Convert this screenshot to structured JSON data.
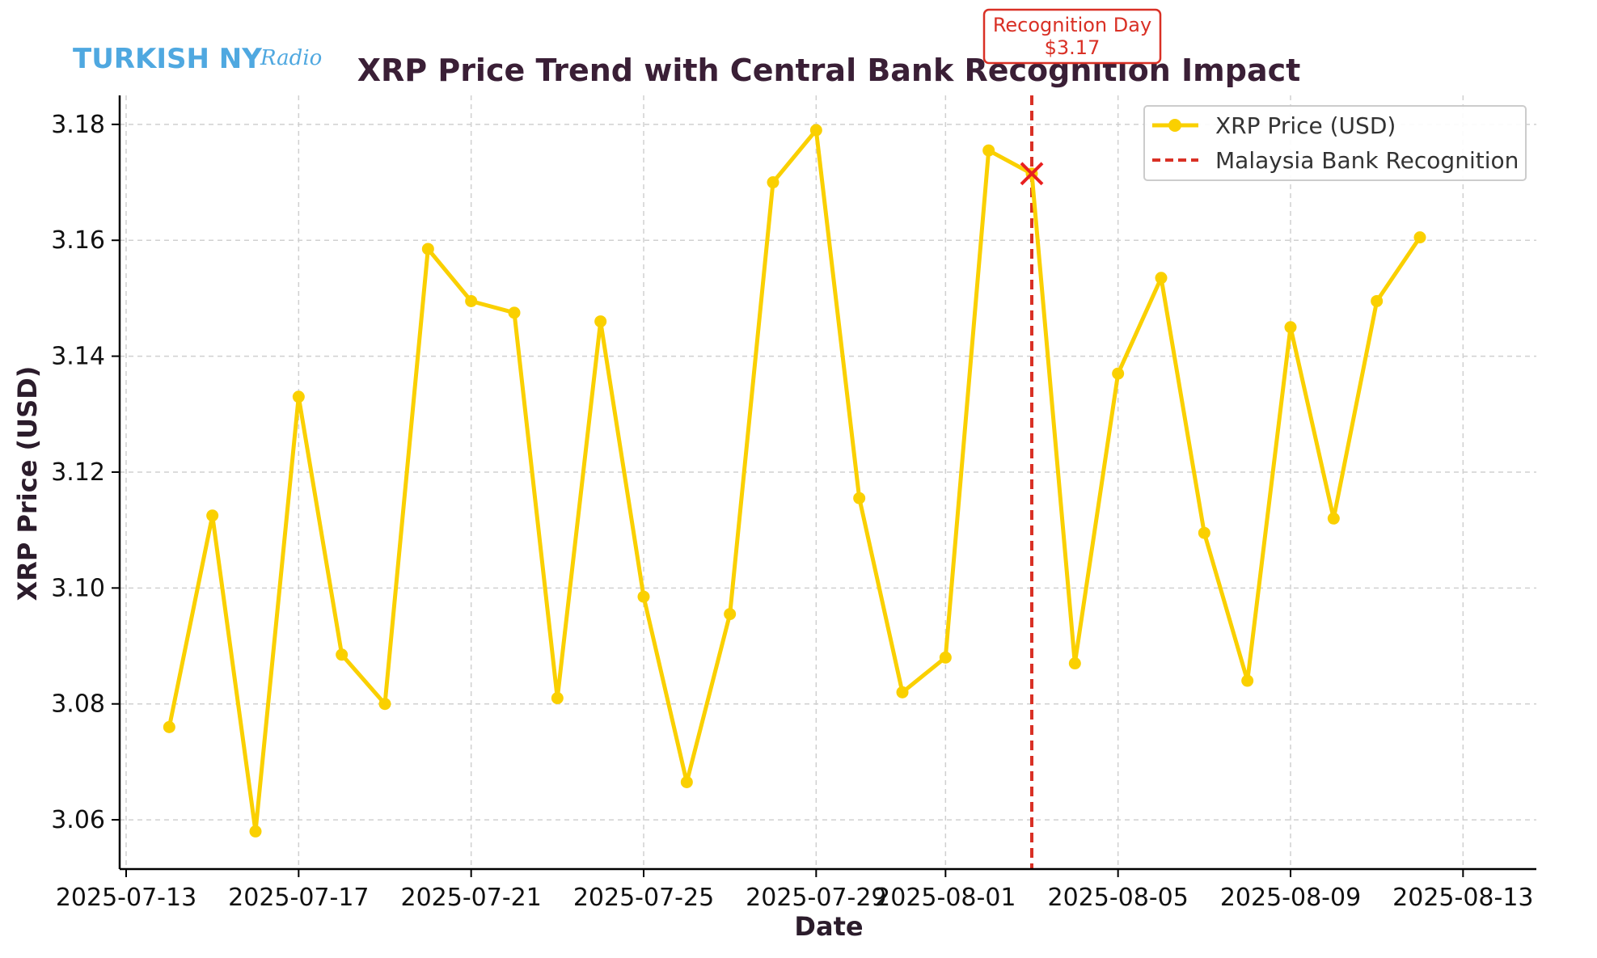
{
  "logo": {
    "main_text": "TURKISH NY",
    "script_text": "Radio",
    "color": "#4FA8E0"
  },
  "chart_data": {
    "type": "line",
    "title": "XRP Price Trend with Central Bank Recognition Impact",
    "xlabel": "Date",
    "ylabel": "XRP Price (USD)",
    "grid": true,
    "legend_position": "top-right",
    "ylim": [
      3.0515,
      3.185
    ],
    "xlim": [
      "2025-07-12.85",
      "2025-08-14.70"
    ],
    "yticks": [
      3.06,
      3.08,
      3.1,
      3.12,
      3.14,
      3.16,
      3.18
    ],
    "ytick_labels": [
      "3.06",
      "3.08",
      "3.10",
      "3.12",
      "3.14",
      "3.16",
      "3.18"
    ],
    "xticks": [
      "2025-07-13",
      "2025-07-17",
      "2025-07-21",
      "2025-07-25",
      "2025-07-29",
      "2025-08-01",
      "2025-08-05",
      "2025-08-09",
      "2025-08-13"
    ],
    "xtick_labels": [
      "2025-07-13",
      "2025-07-17",
      "2025-07-21",
      "2025-07-25",
      "2025-07-29",
      "2025-08-01",
      "2025-08-05",
      "2025-08-09",
      "2025-08-13"
    ],
    "series": [
      {
        "name": "XRP Price (USD)",
        "color": "#FAD000",
        "x": [
          "2025-07-14",
          "2025-07-15",
          "2025-07-16",
          "2025-07-17",
          "2025-07-18",
          "2025-07-19",
          "2025-07-20",
          "2025-07-21",
          "2025-07-22",
          "2025-07-23",
          "2025-07-24",
          "2025-07-25",
          "2025-07-26",
          "2025-07-27",
          "2025-07-28",
          "2025-07-29",
          "2025-07-30",
          "2025-07-31",
          "2025-08-01",
          "2025-08-02",
          "2025-08-03",
          "2025-08-04",
          "2025-08-05",
          "2025-08-06",
          "2025-08-07",
          "2025-08-08",
          "2025-08-09",
          "2025-08-10",
          "2025-08-11",
          "2025-08-12"
        ],
        "values": [
          3.076,
          3.1125,
          3.058,
          3.133,
          3.0885,
          3.08,
          3.1585,
          3.1495,
          3.1475,
          3.081,
          3.146,
          3.0985,
          3.0665,
          3.0955,
          3.17,
          3.179,
          3.1155,
          3.082,
          3.088,
          3.1755,
          3.1715,
          3.087,
          3.137,
          3.1535,
          3.1095,
          3.084,
          3.145,
          3.112,
          3.1495,
          3.1605
        ]
      }
    ],
    "reference_line": {
      "name": "Malaysia Bank Recognition",
      "x": "2025-08-03",
      "style": "dashed",
      "color": "#D93025"
    },
    "annotation": {
      "line1": "Recognition Day",
      "line2": "$3.17",
      "x": "2025-08-03",
      "y": 3.1715,
      "marker_color": "#E82020"
    }
  }
}
